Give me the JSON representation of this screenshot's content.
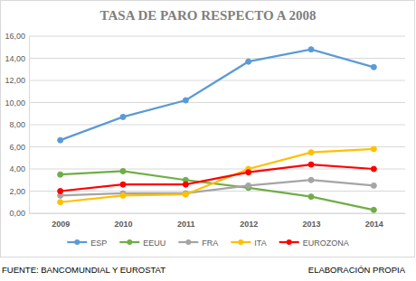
{
  "chart_data": {
    "type": "line",
    "title": "TASA DE PARO RESPECTO A 2008",
    "annotations": [
      "FUENTE: BANCOMUNDIAL Y EUROSTAT",
      "ELABORACIÓN PROPIA"
    ],
    "categories": [
      "2009",
      "2010",
      "2011",
      "2012",
      "2013",
      "2014"
    ],
    "series": [
      {
        "name": "ESP",
        "color": "#5b9bd5",
        "values": [
          6.6,
          8.7,
          10.2,
          13.7,
          14.8,
          13.2
        ]
      },
      {
        "name": "EEUU",
        "color": "#70ad47",
        "values": [
          3.5,
          3.8,
          3.0,
          2.3,
          1.5,
          0.3
        ]
      },
      {
        "name": "FRA",
        "color": "#a5a5a5",
        "values": [
          1.6,
          1.8,
          1.8,
          2.5,
          3.0,
          2.5
        ]
      },
      {
        "name": "ITA",
        "color": "#ffc000",
        "values": [
          1.0,
          1.6,
          1.7,
          4.0,
          5.5,
          5.8
        ]
      },
      {
        "name": "EUROZONA",
        "color": "#ff0000",
        "values": [
          2.0,
          2.6,
          2.6,
          3.7,
          4.4,
          4.0
        ]
      }
    ],
    "ylim": [
      0,
      16
    ],
    "yticks": [
      {
        "value": 0,
        "label": "0,00"
      },
      {
        "value": 2,
        "label": "2,00"
      },
      {
        "value": 4,
        "label": "4,00"
      },
      {
        "value": 6,
        "label": "6,00"
      },
      {
        "value": 8,
        "label": "8,00"
      },
      {
        "value": 10,
        "label": "10,00"
      },
      {
        "value": 12,
        "label": "12,00"
      },
      {
        "value": 14,
        "label": "14,00"
      },
      {
        "value": 16,
        "label": "16,00"
      }
    ],
    "grid": true,
    "legend": "bottom",
    "marker": "circle"
  }
}
